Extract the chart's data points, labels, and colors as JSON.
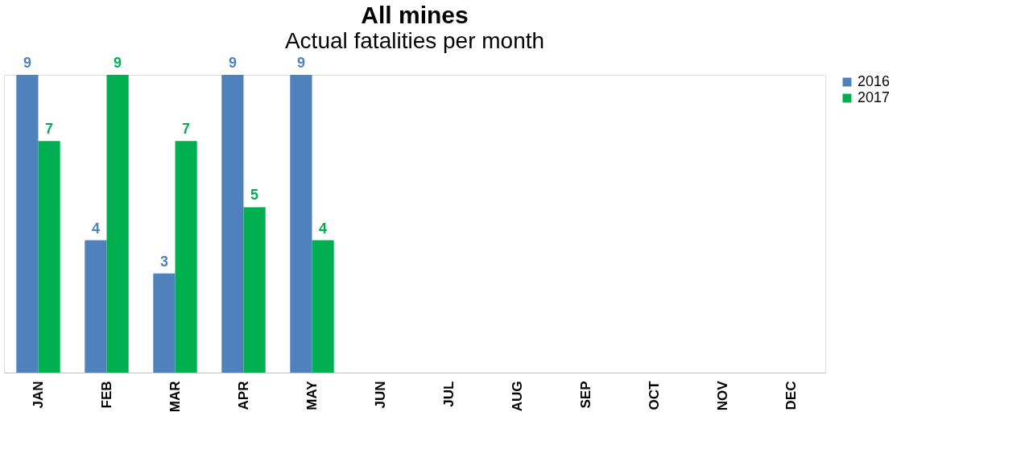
{
  "chart_data": {
    "type": "bar",
    "title": "All mines",
    "subtitle": "Actual fatalities per month",
    "categories": [
      "JAN",
      "FEB",
      "MAR",
      "APR",
      "MAY",
      "JUN",
      "JUL",
      "AUG",
      "SEP",
      "OCT",
      "NOV",
      "DEC"
    ],
    "series": [
      {
        "name": "2016",
        "color": "#4f81bd",
        "values": [
          9,
          4,
          3,
          9,
          9,
          null,
          null,
          null,
          null,
          null,
          null,
          null
        ]
      },
      {
        "name": "2017",
        "color": "#00b050",
        "values": [
          7,
          9,
          7,
          5,
          4,
          null,
          null,
          null,
          null,
          null,
          null,
          null
        ]
      }
    ],
    "data_labels": true,
    "legend": "top right",
    "grid": false
  }
}
